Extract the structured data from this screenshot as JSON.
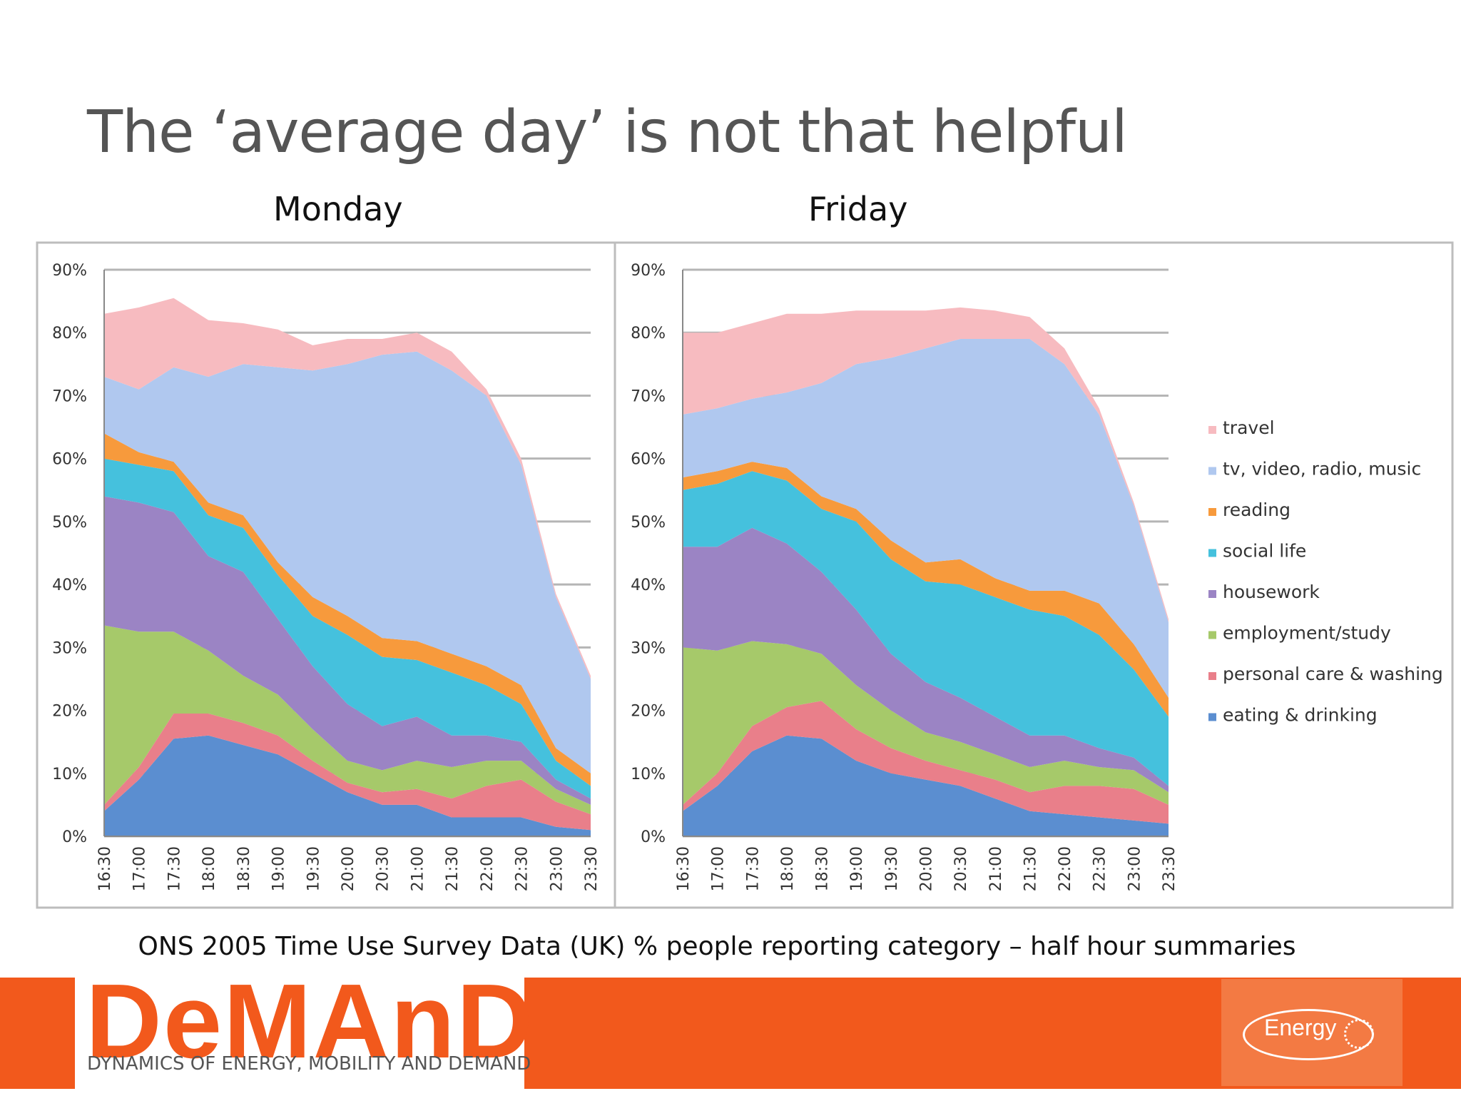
{
  "slide": {
    "title": "The ‘average day’ is not that helpful",
    "caption": "ONS 2005 Time Use Survey Data (UK) % people reporting category – half hour summaries"
  },
  "footer": {
    "logo_word": "DeMAnD",
    "logo_subtitle": "DYNAMICS OF ENERGY, MOBILITY AND DEMAND",
    "badge_text": "Energy",
    "brand_color": "#f2591c"
  },
  "chart_data": [
    {
      "type": "area",
      "stacked": true,
      "title": "Monday",
      "xlabel": "",
      "ylabel": "",
      "ylim": [
        0,
        90
      ],
      "yticks": [
        "0%",
        "10%",
        "20%",
        "30%",
        "40%",
        "50%",
        "60%",
        "70%",
        "80%",
        "90%"
      ],
      "grid": true,
      "x": [
        "16:30",
        "17:00",
        "17:30",
        "18:00",
        "18:30",
        "19:00",
        "19:30",
        "20:00",
        "20:30",
        "21:00",
        "21:30",
        "22:00",
        "22:30",
        "23:00",
        "23:30"
      ],
      "series": [
        {
          "name": "eating & drinking",
          "color": "#5b8ed0",
          "values": [
            4,
            9,
            15.5,
            16,
            14.5,
            13,
            10,
            7,
            5,
            5,
            3,
            3,
            3,
            1.5,
            1
          ]
        },
        {
          "name": "personal care & washing",
          "color": "#e97f8a",
          "values": [
            1,
            2,
            4,
            3.5,
            3.5,
            3,
            2,
            1.5,
            2,
            2.5,
            3,
            5,
            6,
            4,
            2.5
          ]
        },
        {
          "name": "employment/study",
          "color": "#a6c96a",
          "values": [
            28.5,
            21.5,
            13,
            10,
            7.5,
            6.5,
            5,
            3.5,
            3.5,
            4.5,
            5,
            4,
            3,
            2,
            1.5
          ]
        },
        {
          "name": "housework",
          "color": "#9b84c4",
          "values": [
            20.5,
            20.5,
            19,
            15,
            16.5,
            12,
            10,
            9,
            7,
            7,
            5,
            4,
            3,
            1.5,
            1
          ]
        },
        {
          "name": "social life",
          "color": "#45c1dd",
          "values": [
            6,
            6,
            6.5,
            6.5,
            7,
            7,
            8,
            11,
            11,
            9,
            10,
            8,
            6,
            3,
            2
          ]
        },
        {
          "name": "reading",
          "color": "#f79a3c",
          "values": [
            4,
            2,
            1.5,
            2,
            2,
            2,
            3,
            3,
            3,
            3,
            3,
            3,
            3,
            2,
            2
          ]
        },
        {
          "name": "tv, video, radio, music",
          "color": "#b0c8ef",
          "values": [
            9,
            10,
            15,
            20,
            24,
            31,
            36,
            40,
            45,
            46,
            45,
            43,
            35,
            24,
            15
          ]
        },
        {
          "name": "travel",
          "color": "#f7bbc0",
          "values": [
            10,
            13,
            11,
            9,
            6.5,
            6,
            4,
            4,
            2.5,
            3,
            3,
            1,
            1,
            0.5,
            0.5
          ]
        }
      ]
    },
    {
      "type": "area",
      "stacked": true,
      "title": "Friday",
      "xlabel": "",
      "ylabel": "",
      "ylim": [
        0,
        90
      ],
      "yticks": [
        "0%",
        "10%",
        "20%",
        "30%",
        "40%",
        "50%",
        "60%",
        "70%",
        "80%",
        "90%"
      ],
      "grid": true,
      "legend": "right",
      "x": [
        "16:30",
        "17:00",
        "17:30",
        "18:00",
        "18:30",
        "19:00",
        "19:30",
        "20:00",
        "20:30",
        "21:00",
        "21:30",
        "22:00",
        "22:30",
        "23:00",
        "23:30"
      ],
      "series": [
        {
          "name": "eating & drinking",
          "color": "#5b8ed0",
          "values": [
            4,
            8,
            13.5,
            16,
            15.5,
            12,
            10,
            9,
            8,
            6,
            4,
            3.5,
            3,
            2.5,
            2
          ]
        },
        {
          "name": "personal care & washing",
          "color": "#e97f8a",
          "values": [
            1,
            2,
            4,
            4.5,
            6,
            5,
            4,
            3,
            2.5,
            3,
            3,
            4.5,
            5,
            5,
            3
          ]
        },
        {
          "name": "employment/study",
          "color": "#a6c96a",
          "values": [
            25,
            19.5,
            13.5,
            10,
            7.5,
            7,
            6,
            4.5,
            4.5,
            4,
            4,
            4,
            3,
            3,
            2
          ]
        },
        {
          "name": "housework",
          "color": "#9b84c4",
          "values": [
            16,
            16.5,
            18,
            16,
            13,
            12,
            9,
            8,
            7,
            6,
            5,
            4,
            3,
            2,
            1
          ]
        },
        {
          "name": "social life",
          "color": "#45c1dd",
          "values": [
            9,
            10,
            9,
            10,
            10,
            14,
            15,
            16,
            18,
            19,
            20,
            19,
            18,
            14,
            11
          ]
        },
        {
          "name": "reading",
          "color": "#f79a3c",
          "values": [
            2,
            2,
            1.5,
            2,
            2,
            2,
            3,
            3,
            4,
            3,
            3,
            4,
            5,
            4,
            3
          ]
        },
        {
          "name": "tv, video, radio, music",
          "color": "#b0c8ef",
          "values": [
            10,
            10,
            10,
            12,
            18,
            23,
            29,
            34,
            35,
            38,
            40,
            36,
            30,
            22,
            12
          ]
        },
        {
          "name": "travel",
          "color": "#f7bbc0",
          "values": [
            13,
            12,
            12,
            12.5,
            11,
            8.5,
            7.5,
            6,
            5,
            4.5,
            3.5,
            2.5,
            1,
            0.5,
            0.5
          ]
        }
      ]
    }
  ]
}
